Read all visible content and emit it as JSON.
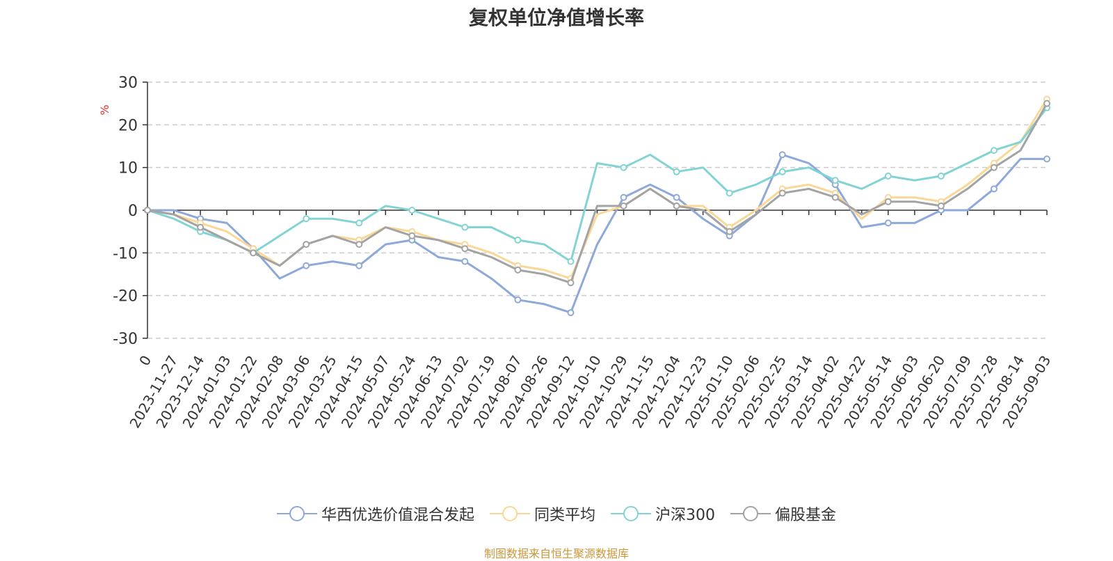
{
  "chart_data": {
    "type": "line",
    "title": "复权单位净值增长率",
    "ylabel": "%",
    "xlabel": "",
    "ylim": [
      -30,
      30
    ],
    "yticks": [
      30,
      20,
      10,
      0,
      -10,
      -20,
      -30
    ],
    "grid": true,
    "legend_position": "bottom",
    "categories": [
      "0",
      "2023-11-27",
      "2023-12-14",
      "2024-01-03",
      "2024-01-22",
      "2024-02-08",
      "2024-03-06",
      "2024-03-25",
      "2024-04-15",
      "2024-05-07",
      "2024-05-24",
      "2024-06-13",
      "2024-07-02",
      "2024-07-19",
      "2024-08-07",
      "2024-08-26",
      "2024-09-12",
      "2024-10-10",
      "2024-10-29",
      "2024-11-15",
      "2024-12-04",
      "2024-12-23",
      "2025-01-10",
      "2025-02-06",
      "2025-02-25",
      "2025-03-14",
      "2025-04-02",
      "2025-04-22",
      "2025-05-14",
      "2025-06-03",
      "2025-06-20",
      "2025-07-09",
      "2025-07-28",
      "2025-08-14",
      "2025-09-03"
    ],
    "series": [
      {
        "name": "华西优选价值混合发起",
        "color": "#8ea9d9",
        "values": [
          0,
          0,
          -2,
          -3,
          -9,
          -16,
          -13,
          -12,
          -13,
          -8,
          -7,
          -11,
          -12,
          -16,
          -21,
          -22,
          -24,
          -8,
          3,
          6,
          3,
          -2,
          -6,
          -1,
          13,
          11,
          6,
          -4,
          -3,
          -3,
          0,
          0,
          5,
          12,
          12
        ]
      },
      {
        "name": "同类平均",
        "color": "#fad797",
        "values": [
          0,
          -1,
          -3,
          -5,
          -9,
          -13,
          -8,
          -6,
          -7,
          -4,
          -5,
          -7,
          -8,
          -10,
          -13,
          -14,
          -16,
          -1,
          1,
          5,
          1,
          1,
          -4,
          0,
          5,
          6,
          4,
          -2,
          3,
          3,
          2,
          6,
          11,
          16,
          26
        ]
      },
      {
        "name": "沪深300",
        "color": "#82d4d4",
        "values": [
          0,
          -2,
          -5,
          -7,
          -10,
          -6,
          -2,
          -2,
          -3,
          1,
          0,
          -2,
          -4,
          -4,
          -7,
          -8,
          -12,
          11,
          10,
          13,
          9,
          10,
          4,
          6,
          9,
          10,
          7,
          5,
          8,
          7,
          8,
          11,
          14,
          16,
          24
        ]
      },
      {
        "name": "偏股基金",
        "color": "#a3a3a3",
        "values": [
          0,
          -1,
          -4,
          -7,
          -10,
          -13,
          -8,
          -6,
          -8,
          -4,
          -6,
          -7,
          -9,
          -11,
          -14,
          -15,
          -17,
          1,
          1,
          5,
          1,
          0,
          -5,
          -1,
          4,
          5,
          3,
          -1,
          2,
          2,
          1,
          5,
          10,
          14,
          25
        ]
      }
    ]
  },
  "source_note": "制图数据来自恒生聚源数据库"
}
